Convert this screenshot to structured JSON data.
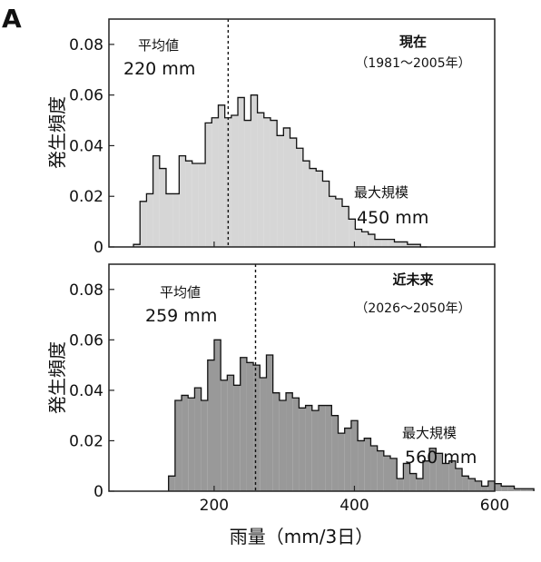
{
  "figure": {
    "panel_label": "A",
    "xlabel": "雨量（mm/3日）"
  },
  "chart_data": [
    {
      "type": "bar",
      "title": "現在",
      "subtitle": "（1981～2005年）",
      "ylabel": "発生頻度",
      "xlabel": "",
      "xlim": [
        50,
        600
      ],
      "ylim": [
        0,
        0.09
      ],
      "xticks": [
        200,
        400,
        600
      ],
      "yticks": [
        0,
        0.02,
        0.04,
        0.06,
        0.08
      ],
      "fill_color": "#d6d6d6",
      "bin_start": 85,
      "bin_width": 9.3,
      "values": [
        0.001,
        0.018,
        0.021,
        0.036,
        0.031,
        0.021,
        0.021,
        0.036,
        0.034,
        0.033,
        0.033,
        0.049,
        0.051,
        0.056,
        0.051,
        0.052,
        0.059,
        0.05,
        0.06,
        0.053,
        0.051,
        0.05,
        0.044,
        0.047,
        0.043,
        0.039,
        0.034,
        0.031,
        0.03,
        0.026,
        0.02,
        0.019,
        0.016,
        0.011,
        0.007,
        0.006,
        0.005,
        0.003,
        0.003,
        0.003,
        0.002,
        0.002,
        0.001,
        0.001,
        0.0
      ],
      "mean_value": 220,
      "mean_label": "平均値",
      "mean_text": "220 mm",
      "max_label": "最大規模",
      "max_text": "450 mm"
    },
    {
      "type": "bar",
      "title": "近未来",
      "subtitle": "（2026～2050年）",
      "ylabel": "発生頻度",
      "xlabel": "",
      "xlim": [
        50,
        600
      ],
      "ylim": [
        0,
        0.09
      ],
      "xticks": [
        200,
        400,
        600
      ],
      "yticks": [
        0,
        0.02,
        0.04,
        0.06,
        0.08
      ],
      "fill_color": "#999999",
      "bin_start": 135,
      "bin_width": 9.3,
      "values": [
        0.006,
        0.036,
        0.038,
        0.037,
        0.041,
        0.036,
        0.052,
        0.06,
        0.044,
        0.046,
        0.042,
        0.053,
        0.051,
        0.05,
        0.045,
        0.054,
        0.039,
        0.036,
        0.039,
        0.037,
        0.033,
        0.034,
        0.032,
        0.034,
        0.034,
        0.03,
        0.023,
        0.025,
        0.028,
        0.02,
        0.021,
        0.018,
        0.016,
        0.014,
        0.013,
        0.005,
        0.011,
        0.007,
        0.005,
        0.012,
        0.017,
        0.015,
        0.011,
        0.012,
        0.009,
        0.006,
        0.005,
        0.004,
        0.002,
        0.004,
        0.003,
        0.002,
        0.002,
        0.001,
        0.001,
        0.001
      ],
      "mean_value": 259,
      "mean_label": "平均値",
      "mean_text": "259 mm",
      "max_label": "最大規模",
      "max_text": "560 mm"
    }
  ]
}
